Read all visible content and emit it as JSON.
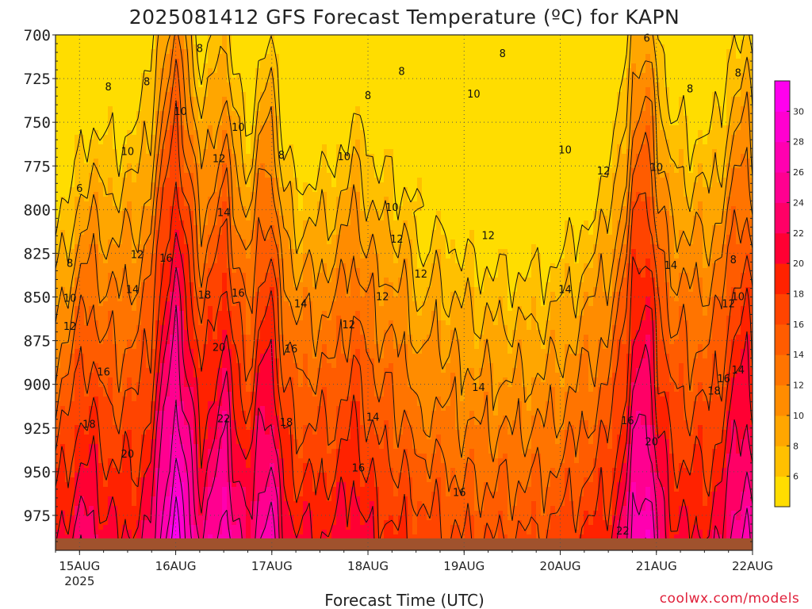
{
  "chart_data": {
    "type": "heatmap",
    "title": "2025081412 GFS Forecast Temperature (ºC) for KAPN",
    "xlabel": "Forecast Time (UTC)",
    "ylabel": "",
    "credit": "coolwx.com/models",
    "y_ticks": [
      "700",
      "725",
      "750",
      "775",
      "800",
      "825",
      "850",
      "875",
      "900",
      "925",
      "950",
      "975"
    ],
    "ylim": [
      700,
      995
    ],
    "x_ticks": [
      {
        "label": "15AUG",
        "sub": "2025"
      },
      {
        "label": "16AUG",
        "sub": ""
      },
      {
        "label": "17AUG",
        "sub": ""
      },
      {
        "label": "18AUG",
        "sub": ""
      },
      {
        "label": "19AUG",
        "sub": ""
      },
      {
        "label": "20AUG",
        "sub": ""
      },
      {
        "label": "21AUG",
        "sub": ""
      },
      {
        "label": "22AUG",
        "sub": ""
      }
    ],
    "xlim_days": [
      14.75,
      22.0
    ],
    "colorbar": {
      "levels": [
        4,
        6,
        8,
        10,
        12,
        14,
        16,
        18,
        20,
        22,
        24,
        26,
        28,
        30,
        32
      ],
      "tick_labels": [
        "6",
        "8",
        "10",
        "12",
        "14",
        "16",
        "18",
        "20",
        "22",
        "24",
        "26",
        "28",
        "30"
      ],
      "colors": [
        "#ffdd00",
        "#ffc000",
        "#ffa600",
        "#ff8c00",
        "#ff7400",
        "#ff5c00",
        "#ff4400",
        "#ff2200",
        "#ff0033",
        "#ff0066",
        "#ff0090",
        "#ff00b0",
        "#ff00d0",
        "#ff00ee"
      ]
    },
    "ground_color": "#a0522d",
    "contour_labels": [
      "6",
      "8",
      "10",
      "12",
      "14",
      "16",
      "18",
      "20",
      "22"
    ],
    "grid": true,
    "grid_style": "dotted"
  }
}
